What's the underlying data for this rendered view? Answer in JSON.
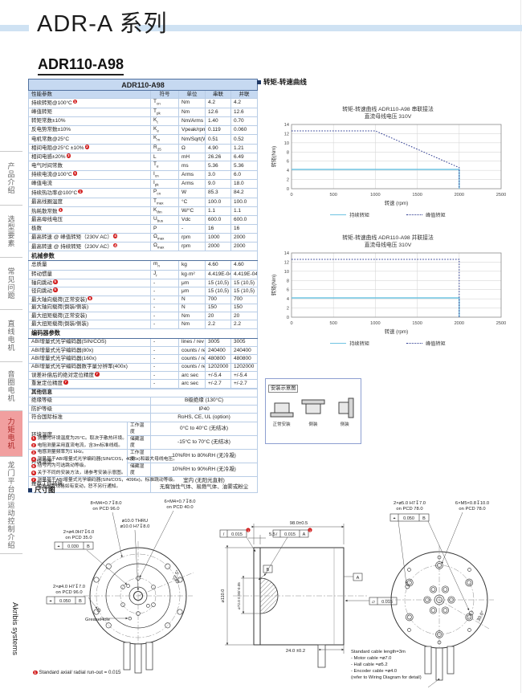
{
  "page": {
    "series_title": "ADR-A 系列",
    "model": "ADR110-A98"
  },
  "sidebar": {
    "items": [
      {
        "label": "产品介绍",
        "active": false
      },
      {
        "label": "选型要素",
        "active": false
      },
      {
        "label": "常见问题",
        "active": false
      },
      {
        "label": "直线电机",
        "active": false
      },
      {
        "label": "音圈电机",
        "active": false
      },
      {
        "label": "力矩电机",
        "active": true
      },
      {
        "label": "龙门平台的运动控制介绍",
        "active": false
      }
    ],
    "brand": "Akribis systems"
  },
  "spec_table": {
    "title": "ADR110-A98",
    "columns": {
      "param": "性能参数",
      "symbol": "符号",
      "unit": "单位",
      "series": "串联",
      "parallel": "并联"
    },
    "perf_rows": [
      {
        "param": "持续转矩@100°C",
        "n": "1",
        "s": "T",
        "sub": "cn",
        "unit": "Nm",
        "series": "4.2",
        "parallel": "4.2"
      },
      {
        "param": "峰值转矩",
        "n": "",
        "s": "T",
        "sub": "pk",
        "unit": "Nm",
        "series": "12.6",
        "parallel": "12.6"
      },
      {
        "param": "转矩常数±10%",
        "n": "",
        "s": "K",
        "sub": "t",
        "unit": "Nm/Arms",
        "series": "1.40",
        "parallel": "0.70"
      },
      {
        "param": "反电势常数±10%",
        "n": "",
        "s": "K",
        "sub": "e",
        "unit": "Vpeak/rpm",
        "series": "0.119",
        "parallel": "0.060"
      },
      {
        "param": "电机常数@25°C",
        "n": "",
        "s": "K",
        "sub": "m",
        "unit": "Nm/Sqrt(W)",
        "series": "0.51",
        "parallel": "0.52"
      },
      {
        "param": "相间电阻@25°C ±10%",
        "n": "2",
        "s": "R",
        "sub": "25",
        "unit": "Ω",
        "series": "4.90",
        "parallel": "1.21"
      },
      {
        "param": "相间电感±20%",
        "n": "3",
        "s": "L",
        "sub": "",
        "unit": "mH",
        "series": "26.26",
        "parallel": "6.49"
      },
      {
        "param": "电气时间常数",
        "n": "",
        "s": "T",
        "sub": "e",
        "unit": "ms",
        "series": "5.36",
        "parallel": "5.36"
      },
      {
        "param": "持续电流@100°C",
        "n": "1",
        "s": "I",
        "sub": "cn",
        "unit": "Arms",
        "series": "3.0",
        "parallel": "6.0"
      },
      {
        "param": "峰值电流",
        "n": "",
        "s": "I",
        "sub": "pk",
        "unit": "Arms",
        "series": "9.0",
        "parallel": "18.0"
      },
      {
        "param": "持续热功率@100°C",
        "n": "1",
        "s": "P",
        "sub": "cn",
        "unit": "W",
        "series": "85.3",
        "parallel": "84.2"
      },
      {
        "param": "最高线圈温度",
        "n": "",
        "s": "T",
        "sub": "max",
        "unit": "°C",
        "series": "100.0",
        "parallel": "100.0"
      },
      {
        "param": "热耗散常数",
        "n": "1",
        "s": "K",
        "sub": "thn",
        "unit": "W/°C",
        "series": "1.1",
        "parallel": "1.1"
      },
      {
        "param": "最高母线电压",
        "n": "",
        "s": "U",
        "sub": "bus",
        "unit": "Vdc",
        "series": "600.0",
        "parallel": "600.0"
      },
      {
        "param": "极数",
        "n": "",
        "s": "P",
        "sub": "",
        "unit": "-",
        "series": "16",
        "parallel": "16"
      },
      {
        "param": "最高转速 @ 峰值转矩（230V AC）",
        "n": "4",
        "s": "Ω",
        "sub": "max",
        "unit": "rpm",
        "series": "1000",
        "parallel": "2000"
      },
      {
        "param": "最高转速 @ 持续转矩（230V AC）",
        "n": "4",
        "s": "Ω",
        "sub": "max",
        "unit": "rpm",
        "series": "2000",
        "parallel": "2000"
      }
    ],
    "mech_header": "机械参数",
    "mech_rows": [
      {
        "param": "总质量",
        "n": "",
        "s": "m",
        "sub": "n",
        "unit": "kg",
        "series": "4.60",
        "parallel": "4.60"
      },
      {
        "param": "转动惯量",
        "n": "",
        "s": "J",
        "sub": "r",
        "unit": "kg·m²",
        "series": "4.419E-04",
        "parallel": "4.419E-04"
      },
      {
        "param": "轴向跳动",
        "n": "5",
        "s": "-",
        "sub": "",
        "unit": "μm",
        "series": "15 (10,5)",
        "parallel": "15 (10,5)"
      },
      {
        "param": "径向跳动",
        "n": "5",
        "s": "-",
        "sub": "",
        "unit": "μm",
        "series": "15 (10,5)",
        "parallel": "15 (10,5)"
      },
      {
        "param": "最大轴向载荷(正常安装)",
        "n": "6",
        "s": "-",
        "sub": "",
        "unit": "N",
        "series": "700",
        "parallel": "700"
      },
      {
        "param": "最大轴向载荷(倒装/侧装)",
        "n": "",
        "s": "-",
        "sub": "",
        "unit": "N",
        "series": "150",
        "parallel": "150"
      },
      {
        "param": "最大扭矩载荷(正常安装)",
        "n": "",
        "s": "-",
        "sub": "",
        "unit": "Nm",
        "series": "20",
        "parallel": "20"
      },
      {
        "param": "最大扭矩载荷(倒装/侧装)",
        "n": "",
        "s": "-",
        "sub": "",
        "unit": "Nm",
        "series": "2.2",
        "parallel": "2.2"
      }
    ],
    "enc_header": "编码器参数",
    "enc_rows": [
      {
        "param": "ABI增量式光学编码器(SIN/COS)",
        "n": "",
        "s": "-",
        "sub": "",
        "unit": "lines / rev",
        "series": "3005",
        "parallel": "3005"
      },
      {
        "param": "ABI增量式光学编码器(80x)",
        "n": "",
        "s": "-",
        "sub": "",
        "unit": "counts / rev",
        "series": "240400",
        "parallel": "240400"
      },
      {
        "param": "ABI增量式光学编码器(160x)",
        "n": "",
        "s": "-",
        "sub": "",
        "unit": "counts / rev",
        "series": "480800",
        "parallel": "480800"
      },
      {
        "param": "ABI增量式光学编码器数字量分辨率(400x)",
        "n": "",
        "s": "-",
        "sub": "",
        "unit": "counts / rev",
        "series": "1202000",
        "parallel": "1202000"
      },
      {
        "param": "误差补偿后的绝对定位精度",
        "n": "7",
        "s": "-",
        "sub": "",
        "unit": "arc sec",
        "series": "+/-5.4",
        "parallel": "+/-5.4"
      },
      {
        "param": "重复定位精度",
        "n": "7",
        "s": "-",
        "sub": "",
        "unit": "arc sec",
        "series": "+/-2.7",
        "parallel": "+/-2.7"
      }
    ],
    "other_header": "其他信息",
    "other_rows": [
      {
        "label": "绝缘等级",
        "value": "B级绝缘 (130°C)"
      },
      {
        "label": "防护等级",
        "value": "IP40"
      },
      {
        "label": "符合国际标准",
        "value": "RoHS, CE, UL (option)"
      }
    ],
    "env_rows": [
      {
        "label": "环境温度",
        "subs": [
          {
            "sub": "工作温度",
            "value": "0°C to 40°C (无结冰)"
          },
          {
            "sub": "储藏温度",
            "value": "-15°C to 70°C (无结冰)"
          }
        ]
      },
      {
        "label": "环境湿度",
        "subs": [
          {
            "sub": "工作湿度",
            "value": "10%RH to 80%RH (无冷凝)"
          },
          {
            "sub": "储藏湿度",
            "value": "10%RH to 90%RH (无冷凝)"
          }
        ]
      }
    ],
    "recommend": {
      "label": "推荐工作环境",
      "lines": [
        "室内 (无阳光直射)",
        "无腐蚀性气体、易燃气体、油雾或粉尘"
      ]
    },
    "footnotes": [
      "测量时环境温度为25°C。取决于散热环境。",
      "电阻测量采用直流电流，含3m标准线缆。",
      "电感测量频率为1 kHz。",
      "测量基于ABI增量式光学编码器(SIN/COS，4096x)和最大母线电压。",
      "括号内为可选跳动等级。",
      "关于不同的安装方法，请参考安装示意图。",
      "测量基于ABI增量式光学编码器(SIN/COS，4096x)。标准跳动等级。"
    ],
    "footnote_tail": "相关参数规格如有变动，恕不另行通知。"
  },
  "torque_section_title": "转矩-转速曲线",
  "chart_data": [
    {
      "type": "line",
      "title": "转矩-转速曲线 ADR110-A98 串联接法",
      "subtitle": "直流母线电压 310V",
      "xlabel": "转速 (rpm)",
      "ylabel": "转矩(Nm)",
      "xlim": [
        0,
        2500
      ],
      "ylim": [
        0,
        14
      ],
      "xticks": [
        0,
        500,
        1000,
        1500,
        2000,
        2500
      ],
      "yticks": [
        0,
        2,
        4,
        6,
        8,
        10,
        12,
        14
      ],
      "grid": true,
      "legend_position": "bottom",
      "series": [
        {
          "name": "持续转矩",
          "style": "solid",
          "color": "#6fc3e2",
          "points": [
            [
              0,
              4.2
            ],
            [
              2000,
              4.2
            ],
            [
              2000,
              0
            ]
          ]
        },
        {
          "name": "峰值转矩",
          "style": "dotted",
          "color": "#2b3990",
          "points": [
            [
              0,
              12.6
            ],
            [
              1000,
              12.6
            ],
            [
              2000,
              4.6
            ],
            [
              2000,
              0
            ]
          ]
        }
      ]
    },
    {
      "type": "line",
      "title": "转矩-转速曲线 ADR110-A98 并联接法",
      "subtitle": "直流母线电压 310V",
      "xlabel": "转速 (rpm)",
      "ylabel": "转矩(Nm)",
      "xlim": [
        0,
        2500
      ],
      "ylim": [
        0,
        14
      ],
      "xticks": [
        0,
        500,
        1000,
        1500,
        2000,
        2500
      ],
      "yticks": [
        0,
        2,
        4,
        6,
        8,
        10,
        12,
        14
      ],
      "grid": true,
      "legend_position": "bottom",
      "series": [
        {
          "name": "持续转矩",
          "style": "solid",
          "color": "#6fc3e2",
          "points": [
            [
              0,
              4.2
            ],
            [
              2000,
              4.2
            ],
            [
              2000,
              0
            ]
          ]
        },
        {
          "name": "峰值转矩",
          "style": "dotted",
          "color": "#2b3990",
          "points": [
            [
              0,
              12.6
            ],
            [
              2000,
              12.6
            ],
            [
              2000,
              0
            ]
          ]
        }
      ]
    }
  ],
  "mount": {
    "title": "安装示意图",
    "items": [
      "正常安装",
      "倒装",
      "侧装"
    ]
  },
  "dims": {
    "section_title": "尺寸图",
    "front": {
      "bolt8_l1": "8×M4×0.7↧8.0",
      "bolt8_l2": "on PCD 96.0",
      "bolt6_l1": "6×M4×0.7↧8.0",
      "bolt6_l2": "on PCD 40.0",
      "bore_l1": "⌀10.0 THRU",
      "bore_l2": "⌀10.0 H7↧8.0",
      "dowel35_l1": "2×⌀4.0H7↧6.0",
      "dowel35_l2": "on PCD 35.0",
      "dowel35_fcf": "0.030",
      "dowel35_datum": "B",
      "dowel96_l1": "2×⌀4.0 H7↧7.0",
      "dowel96_l2": "on PCD 96.0",
      "dowel96_fcf": "0.050",
      "dowel96_datum": "B",
      "grease": "GreaseHole",
      "angle": "22.5°"
    },
    "side": {
      "len": "98.0±0.5",
      "flange": "5.5",
      "cable_off": "24.0 ±0.2",
      "dia110": "⌀110.0",
      "dia72": "⌀72.0  0.00/-0.05",
      "flat1": "0.015",
      "flat2": "0.015",
      "flat2_datum": "A",
      "par": "0.015",
      "datumA": "A",
      "datumB": "B"
    },
    "rear": {
      "dowel_l1": "2×⌀5.0 H7↧7.0",
      "dowel_l2": "on PCD 78.0",
      "dowel_fcf": "0.050",
      "dowel_datum": "B",
      "bolt_l1": "6×M5×0.8↧10.0",
      "bolt_l2": "on PCD 78.0",
      "angle": "30.0°"
    },
    "cable_note": [
      "Standard cable length=3m",
      "- Motor cable =⌀7.0",
      "- Hall cable =⌀5.2",
      "- Encoder cable =⌀4.0",
      "(refer to Wiring Diagram for detail)"
    ],
    "runout_note": "Standard axial/ radial run-out = 0.015"
  },
  "colors": {
    "table_header_bg": "#c6d9f1",
    "table_border": "#51719f",
    "accent_bar": "#cfe2f3",
    "active_tab_bg": "#f19f9f",
    "continuous_line": "#6fc3e2",
    "peak_line": "#2b3990",
    "note_red": "#d21f1f"
  }
}
